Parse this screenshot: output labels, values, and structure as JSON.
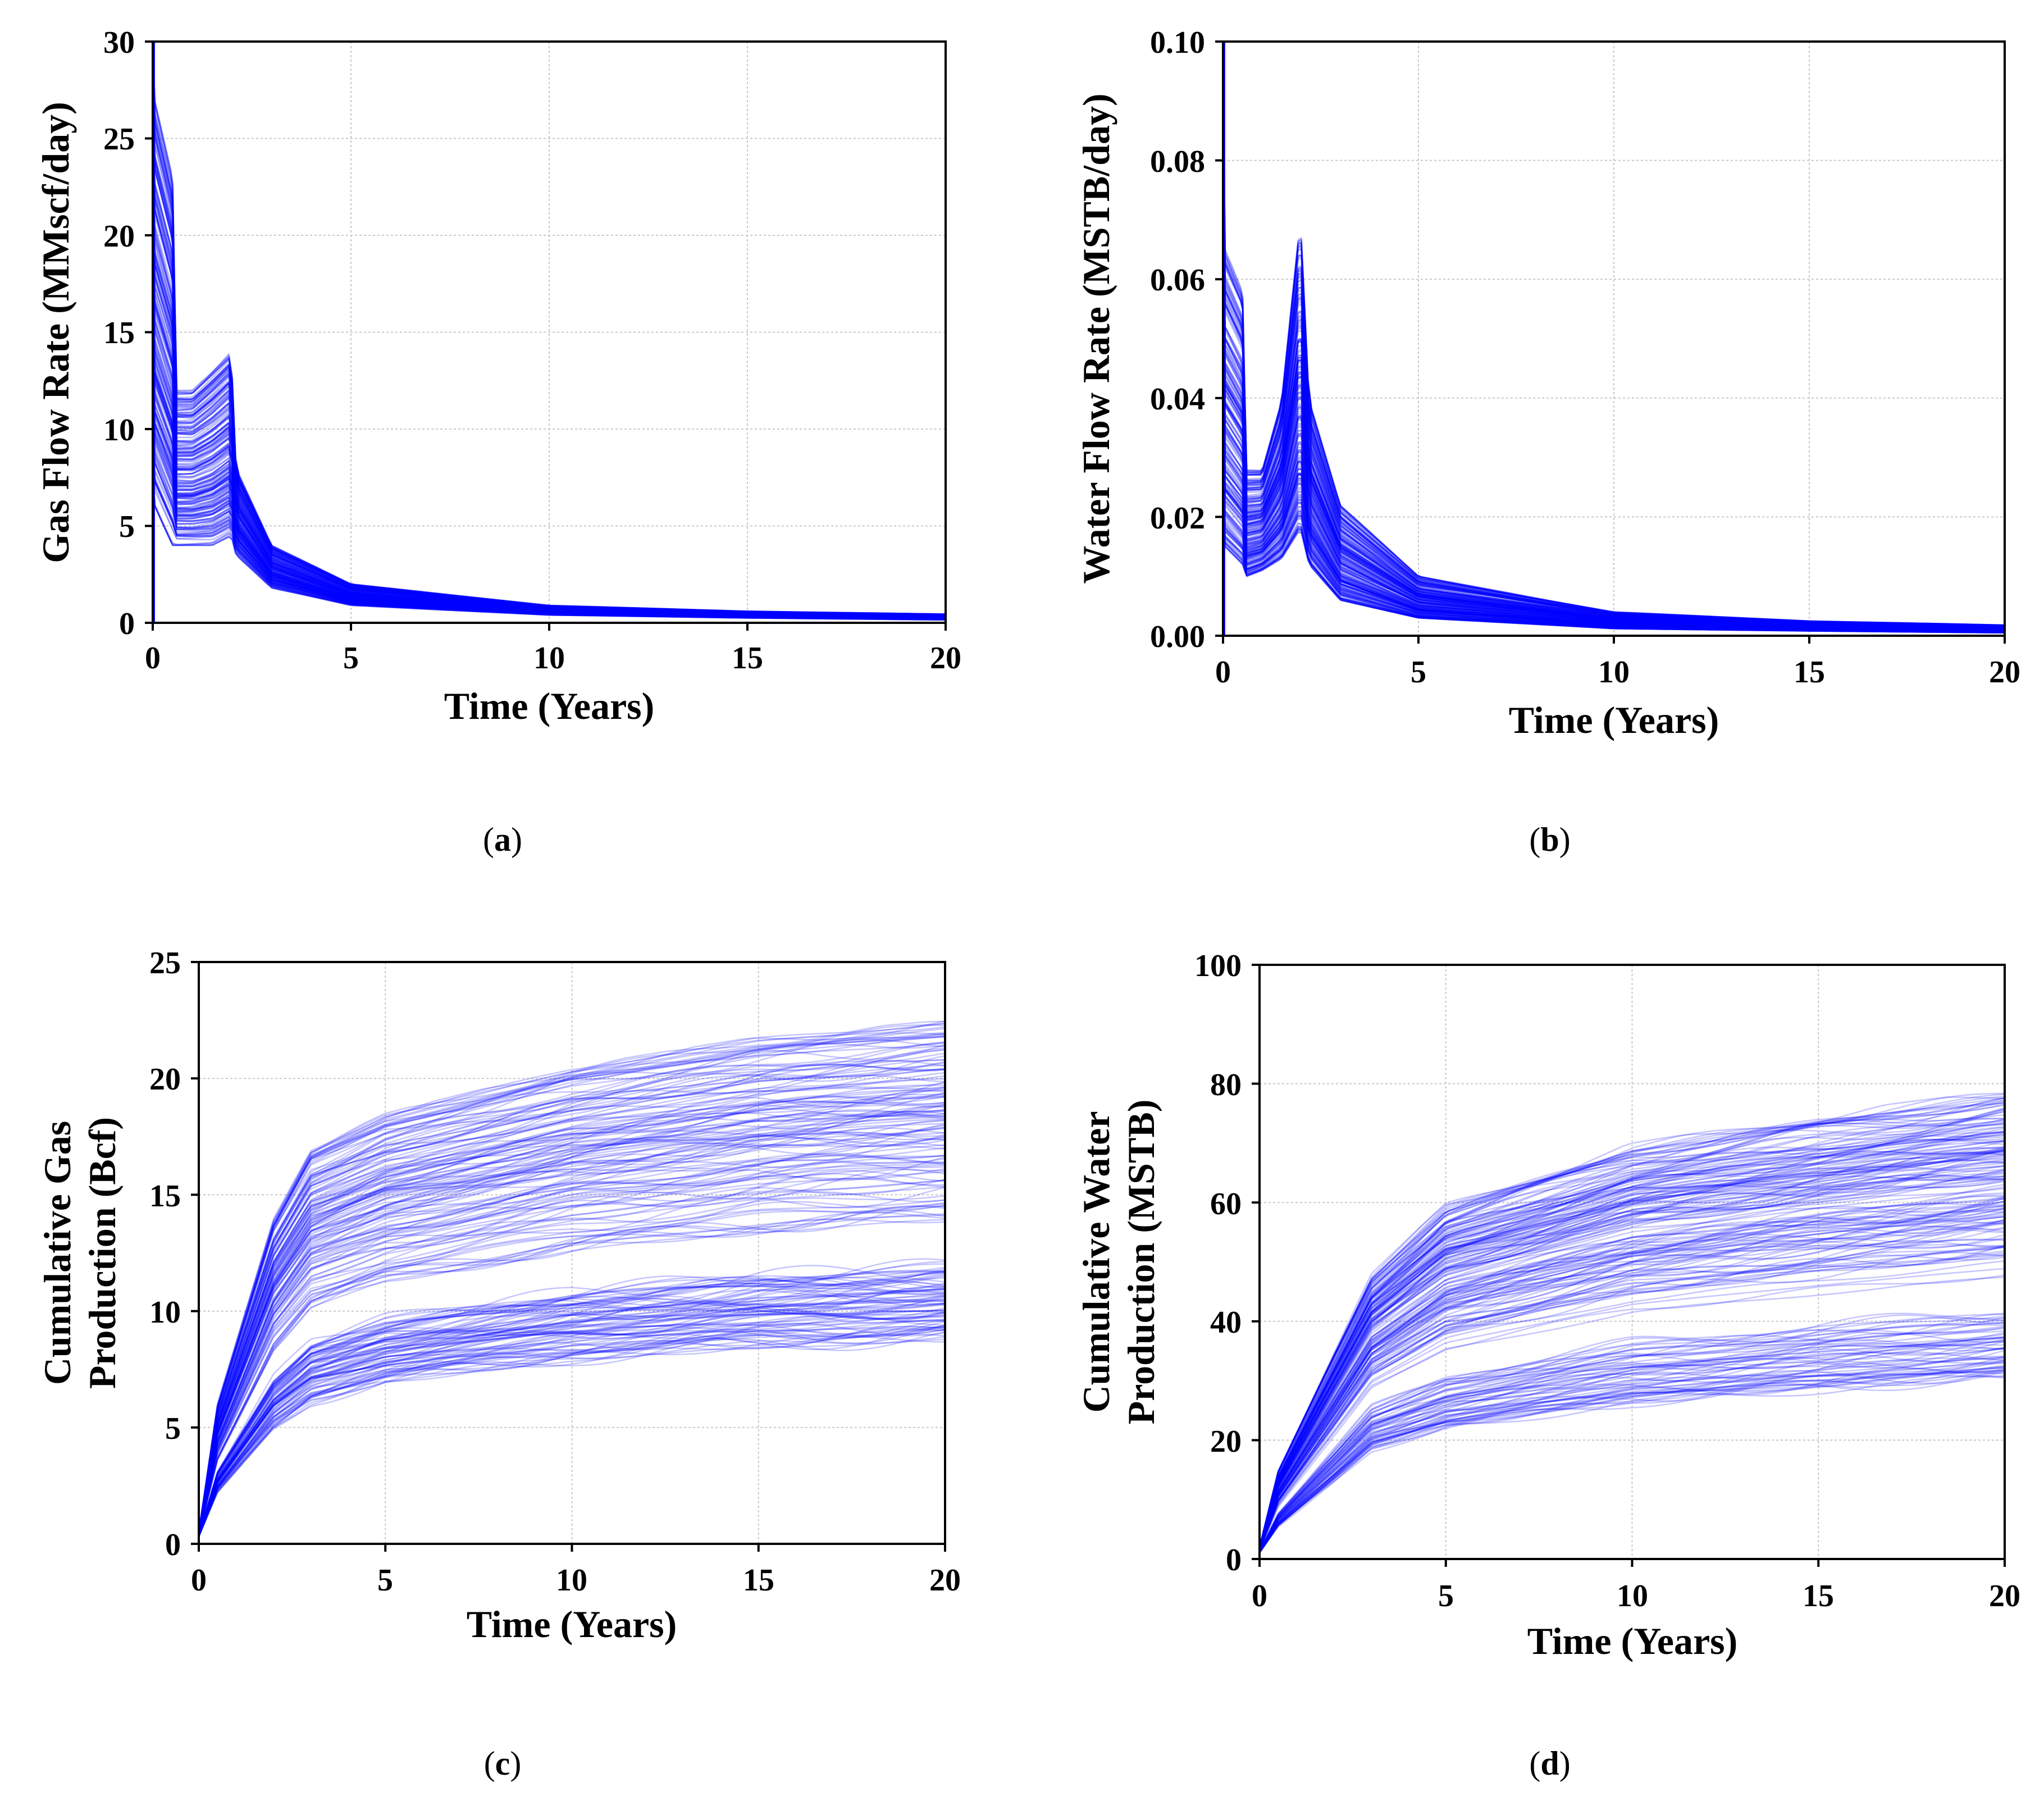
{
  "figure": {
    "panels": [
      {
        "id": "a",
        "caption_open": "(",
        "caption_letter": "a",
        "caption_close": ")"
      },
      {
        "id": "b",
        "caption_open": "(",
        "caption_letter": "b",
        "caption_close": ")"
      },
      {
        "id": "c",
        "caption_open": "(",
        "caption_letter": "c",
        "caption_close": ")"
      },
      {
        "id": "d",
        "caption_open": "(",
        "caption_letter": "d",
        "caption_close": ")"
      }
    ]
  },
  "chart_data": [
    {
      "panel": "a",
      "type": "line",
      "title": "",
      "xlabel": "Time (Years)",
      "ylabel_lines": [
        "Gas Flow Rate (MMscf/day)"
      ],
      "xlim": [
        0,
        20
      ],
      "ylim": [
        0,
        30
      ],
      "xticks": [
        0,
        5,
        10,
        15,
        20
      ],
      "xtick_labels": [
        "0",
        "5",
        "10",
        "15",
        "20"
      ],
      "yticks": [
        0,
        5,
        10,
        15,
        20,
        25,
        30
      ],
      "ytick_labels": [
        "0",
        "5",
        "10",
        "15",
        "20",
        "25",
        "30"
      ],
      "grid": true,
      "line_color": "#0000ff",
      "ensemble_size": 220,
      "series_envelope": [
        {
          "name": "upper",
          "x": [
            0,
            0.05,
            0.5,
            0.6,
            1.0,
            1.5,
            1.98,
            2.1,
            3,
            5,
            10,
            15,
            20
          ],
          "y": [
            30,
            27,
            23,
            12,
            12,
            13,
            14,
            8,
            4,
            2.0,
            0.9,
            0.6,
            0.45
          ]
        },
        {
          "name": "lower",
          "x": [
            0,
            0.05,
            0.5,
            0.6,
            1.0,
            1.5,
            1.98,
            2.1,
            3,
            5,
            10,
            15,
            20
          ],
          "y": [
            8,
            6,
            4,
            4,
            4,
            4,
            4.5,
            3.5,
            1.8,
            0.9,
            0.4,
            0.25,
            0.15
          ]
        }
      ]
    },
    {
      "panel": "b",
      "type": "line",
      "title": "",
      "xlabel": "Time (Years)",
      "ylabel_lines": [
        "Water Flow Rate (MSTB/day)"
      ],
      "xlim": [
        0,
        20
      ],
      "ylim": [
        0,
        0.1
      ],
      "xticks": [
        0,
        5,
        10,
        15,
        20
      ],
      "xtick_labels": [
        "0",
        "5",
        "10",
        "15",
        "20"
      ],
      "yticks": [
        0,
        0.02,
        0.04,
        0.06,
        0.08,
        0.1
      ],
      "ytick_labels": [
        "0.00",
        "0.02",
        "0.04",
        "0.06",
        "0.08",
        "0.10"
      ],
      "grid": true,
      "line_color": "#0000ff",
      "ensemble_size": 220,
      "series_envelope": [
        {
          "name": "upper",
          "x": [
            0,
            0.05,
            0.5,
            0.6,
            1.0,
            1.5,
            1.98,
            2.2,
            3,
            5,
            10,
            15,
            20
          ],
          "y": [
            0.1,
            0.065,
            0.058,
            0.028,
            0.028,
            0.04,
            0.071,
            0.04,
            0.022,
            0.01,
            0.004,
            0.0025,
            0.0018
          ]
        },
        {
          "name": "lower",
          "x": [
            0,
            0.05,
            0.5,
            0.6,
            1.0,
            1.5,
            1.98,
            2.2,
            3,
            5,
            10,
            15,
            20
          ],
          "y": [
            0.02,
            0.015,
            0.012,
            0.01,
            0.011,
            0.013,
            0.018,
            0.012,
            0.006,
            0.003,
            0.0012,
            0.0008,
            0.0005
          ]
        }
      ]
    },
    {
      "panel": "c",
      "type": "line",
      "title": "",
      "xlabel": "Time (Years)",
      "ylabel_lines": [
        "Cumulative Gas",
        "Production (Bcf)"
      ],
      "xlim": [
        0,
        20
      ],
      "ylim": [
        0,
        25
      ],
      "xticks": [
        0,
        5,
        10,
        15,
        20
      ],
      "xtick_labels": [
        "0",
        "5",
        "10",
        "15",
        "20"
      ],
      "yticks": [
        0,
        5,
        10,
        15,
        20,
        25
      ],
      "ytick_labels": [
        "0",
        "5",
        "10",
        "15",
        "20",
        "25"
      ],
      "grid": true,
      "line_color": "#0000ff",
      "ensemble_size": 220,
      "series_envelope": [
        {
          "name": "upper",
          "x": [
            0,
            0.5,
            2,
            3,
            5,
            10,
            15,
            20
          ],
          "y": [
            0.5,
            6,
            14,
            17,
            18.5,
            20.5,
            21.8,
            22.5
          ]
        },
        {
          "name": "lower",
          "x": [
            0,
            0.5,
            2,
            3,
            5,
            10,
            15,
            20
          ],
          "y": [
            0.3,
            2,
            4.5,
            5.5,
            6.3,
            7.2,
            7.7,
            8.0
          ]
        }
      ]
    },
    {
      "panel": "d",
      "type": "line",
      "title": "",
      "xlabel": "Time (Years)",
      "ylabel_lines": [
        "Cumulative Water",
        "Production (MSTB)"
      ],
      "xlim": [
        0,
        20
      ],
      "ylim": [
        0,
        100
      ],
      "xticks": [
        0,
        5,
        10,
        15,
        20
      ],
      "xtick_labels": [
        "0",
        "5",
        "10",
        "15",
        "20"
      ],
      "yticks": [
        0,
        20,
        40,
        60,
        80,
        100
      ],
      "ytick_labels": [
        "0",
        "20",
        "40",
        "60",
        "80",
        "100"
      ],
      "grid": true,
      "line_color": "#0000ff",
      "ensemble_size": 220,
      "series_envelope": [
        {
          "name": "upper",
          "x": [
            0,
            0.5,
            2,
            3,
            5,
            10,
            15,
            20
          ],
          "y": [
            2,
            15,
            35,
            48,
            60,
            70,
            75,
            79
          ]
        },
        {
          "name": "lower",
          "x": [
            0,
            0.5,
            2,
            3,
            5,
            10,
            15,
            20
          ],
          "y": [
            1,
            5,
            12,
            17,
            20,
            24,
            26,
            28
          ]
        }
      ]
    }
  ]
}
